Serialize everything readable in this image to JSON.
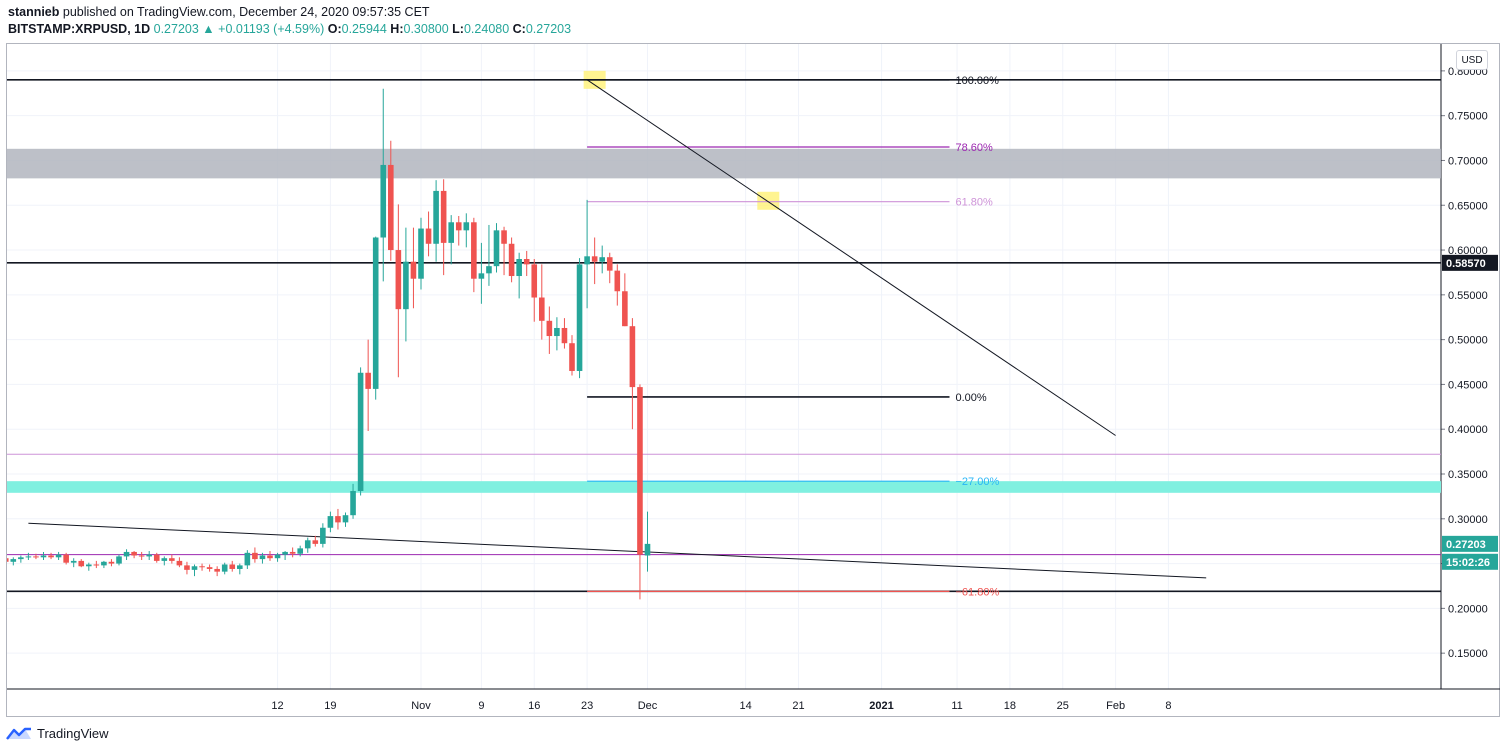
{
  "header": {
    "line1_author": "stannieb",
    "line1_rest": " published on TradingView.com, December 24, 2020 09:57:35 CET",
    "symbol": "BITSTAMP:XRPUSD, 1D",
    "last": "0.27203",
    "change": "▲ +0.01193 (+4.59%)",
    "o_label": "O:",
    "o": "0.25944",
    "h_label": "H:",
    "h": "0.30800",
    "l_label": "L:",
    "l": "0.24080",
    "c_label": "C:",
    "c": "0.27203"
  },
  "footer": {
    "brand": "TradingView",
    "logo_icon": "tradingview-logo-icon"
  },
  "currency_button": "USD",
  "colors": {
    "up": "#26a69a",
    "down": "#ef5350",
    "grid": "#f0f3fa",
    "fib_purple": "#9c27b0",
    "fib_light_purple": "#ce93d8",
    "fib_blue": "#29b6f6",
    "fib_red": "#ef5350",
    "zone_gray": "#b2b5be",
    "zone_cyan": "#80f0e0",
    "highlight": "#fff176"
  },
  "chart_data": {
    "type": "candlestick",
    "symbol": "BITSTAMP:XRPUSD",
    "interval": "1D",
    "ylim": [
      0.11,
      0.83
    ],
    "y_ticks": [
      "0.80000",
      "0.75000",
      "0.70000",
      "0.65000",
      "0.60000",
      "0.55000",
      "0.50000",
      "0.45000",
      "0.40000",
      "0.35000",
      "0.30000",
      "0.25000",
      "0.20000",
      "0.15000"
    ],
    "x_ticks": [
      {
        "label": "12",
        "day": -49
      },
      {
        "label": "19",
        "day": -42
      },
      {
        "label": "Nov",
        "day": -30
      },
      {
        "label": "9",
        "day": -22
      },
      {
        "label": "16",
        "day": -15
      },
      {
        "label": "23",
        "day": -8
      },
      {
        "label": "Dec",
        "day": 0
      },
      {
        "label": "14",
        "day": 13
      },
      {
        "label": "21",
        "day": 20
      },
      {
        "label": "2021",
        "day": 31
      },
      {
        "label": "11",
        "day": 41
      },
      {
        "label": "18",
        "day": 48
      },
      {
        "label": "25",
        "day": 55
      },
      {
        "label": "Feb",
        "day": 62
      },
      {
        "label": "8",
        "day": 69
      }
    ],
    "candles": [
      [
        0.244,
        0.258,
        0.241,
        0.255
      ],
      [
        0.255,
        0.261,
        0.249,
        0.253
      ],
      [
        0.253,
        0.259,
        0.249,
        0.256
      ],
      [
        0.256,
        0.262,
        0.251,
        0.252
      ],
      [
        0.252,
        0.257,
        0.248,
        0.255
      ],
      [
        0.255,
        0.259,
        0.251,
        0.257
      ],
      [
        0.257,
        0.262,
        0.254,
        0.258
      ],
      [
        0.258,
        0.261,
        0.255,
        0.257
      ],
      [
        0.257,
        0.263,
        0.254,
        0.259
      ],
      [
        0.259,
        0.262,
        0.255,
        0.257
      ],
      [
        0.257,
        0.263,
        0.254,
        0.26
      ],
      [
        0.26,
        0.262,
        0.249,
        0.251
      ],
      [
        0.251,
        0.256,
        0.246,
        0.253
      ],
      [
        0.253,
        0.255,
        0.246,
        0.247
      ],
      [
        0.247,
        0.251,
        0.242,
        0.249
      ],
      [
        0.249,
        0.253,
        0.245,
        0.248
      ],
      [
        0.248,
        0.253,
        0.245,
        0.252
      ],
      [
        0.252,
        0.255,
        0.247,
        0.25
      ],
      [
        0.25,
        0.26,
        0.248,
        0.258
      ],
      [
        0.258,
        0.266,
        0.254,
        0.263
      ],
      [
        0.263,
        0.264,
        0.256,
        0.259
      ],
      [
        0.259,
        0.263,
        0.254,
        0.258
      ],
      [
        0.258,
        0.264,
        0.254,
        0.26
      ],
      [
        0.26,
        0.262,
        0.251,
        0.253
      ],
      [
        0.253,
        0.258,
        0.248,
        0.256
      ],
      [
        0.256,
        0.26,
        0.25,
        0.253
      ],
      [
        0.253,
        0.257,
        0.246,
        0.248
      ],
      [
        0.248,
        0.252,
        0.238,
        0.243
      ],
      [
        0.243,
        0.249,
        0.236,
        0.247
      ],
      [
        0.247,
        0.25,
        0.242,
        0.246
      ],
      [
        0.246,
        0.249,
        0.241,
        0.244
      ],
      [
        0.244,
        0.247,
        0.236,
        0.241
      ],
      [
        0.241,
        0.251,
        0.238,
        0.249
      ],
      [
        0.249,
        0.253,
        0.241,
        0.244
      ],
      [
        0.244,
        0.25,
        0.238,
        0.248
      ],
      [
        0.248,
        0.265,
        0.244,
        0.262
      ],
      [
        0.262,
        0.268,
        0.251,
        0.255
      ],
      [
        0.255,
        0.262,
        0.25,
        0.259
      ],
      [
        0.259,
        0.264,
        0.253,
        0.256
      ],
      [
        0.256,
        0.262,
        0.252,
        0.26
      ],
      [
        0.26,
        0.264,
        0.254,
        0.263
      ],
      [
        0.263,
        0.268,
        0.257,
        0.261
      ],
      [
        0.261,
        0.27,
        0.258,
        0.267
      ],
      [
        0.267,
        0.279,
        0.262,
        0.276
      ],
      [
        0.276,
        0.281,
        0.269,
        0.272
      ],
      [
        0.272,
        0.295,
        0.268,
        0.29
      ],
      [
        0.29,
        0.308,
        0.285,
        0.303
      ],
      [
        0.303,
        0.311,
        0.288,
        0.296
      ],
      [
        0.296,
        0.307,
        0.291,
        0.304
      ],
      [
        0.304,
        0.339,
        0.3,
        0.331
      ],
      [
        0.331,
        0.469,
        0.326,
        0.463
      ],
      [
        0.463,
        0.5,
        0.398,
        0.445
      ],
      [
        0.445,
        0.615,
        0.433,
        0.614
      ],
      [
        0.614,
        0.78,
        0.565,
        0.695
      ],
      [
        0.695,
        0.722,
        0.588,
        0.6
      ],
      [
        0.6,
        0.651,
        0.458,
        0.534
      ],
      [
        0.534,
        0.625,
        0.498,
        0.587
      ],
      [
        0.587,
        0.625,
        0.535,
        0.568
      ],
      [
        0.568,
        0.636,
        0.556,
        0.624
      ],
      [
        0.624,
        0.643,
        0.593,
        0.607
      ],
      [
        0.607,
        0.678,
        0.587,
        0.666
      ],
      [
        0.666,
        0.679,
        0.572,
        0.608
      ],
      [
        0.608,
        0.639,
        0.584,
        0.631
      ],
      [
        0.631,
        0.638,
        0.605,
        0.622
      ],
      [
        0.622,
        0.641,
        0.603,
        0.631
      ],
      [
        0.631,
        0.636,
        0.553,
        0.568
      ],
      [
        0.568,
        0.608,
        0.54,
        0.574
      ],
      [
        0.574,
        0.628,
        0.56,
        0.582
      ],
      [
        0.582,
        0.63,
        0.575,
        0.622
      ],
      [
        0.622,
        0.626,
        0.572,
        0.607
      ],
      [
        0.607,
        0.614,
        0.564,
        0.571
      ],
      [
        0.571,
        0.597,
        0.546,
        0.59
      ],
      [
        0.59,
        0.599,
        0.571,
        0.584
      ],
      [
        0.584,
        0.59,
        0.52,
        0.547
      ],
      [
        0.547,
        0.584,
        0.5,
        0.521
      ],
      [
        0.521,
        0.537,
        0.484,
        0.504
      ],
      [
        0.504,
        0.525,
        0.488,
        0.513
      ],
      [
        0.513,
        0.524,
        0.49,
        0.496
      ],
      [
        0.496,
        0.505,
        0.46,
        0.465
      ],
      [
        0.465,
        0.591,
        0.457,
        0.584
      ],
      [
        0.584,
        0.656,
        0.535,
        0.593
      ],
      [
        0.593,
        0.614,
        0.562,
        0.587
      ],
      [
        0.587,
        0.605,
        0.574,
        0.592
      ],
      [
        0.592,
        0.597,
        0.563,
        0.577
      ],
      [
        0.577,
        0.584,
        0.538,
        0.554
      ],
      [
        0.554,
        0.574,
        0.515,
        0.515
      ],
      [
        0.515,
        0.524,
        0.4,
        0.447
      ],
      [
        0.447,
        0.45,
        0.21,
        0.26
      ],
      [
        0.259,
        0.308,
        0.241,
        0.272
      ]
    ],
    "hlines": [
      {
        "value": 0.79,
        "from_day": -82,
        "label": "100.00%",
        "label_color": "#131722",
        "line_color": "#131722"
      },
      {
        "value": 0.5857,
        "from_day": -82,
        "line_color": "#131722"
      },
      {
        "value": 0.219,
        "from_day": -82,
        "line_color": "#131722"
      }
    ],
    "fib_levels": [
      {
        "value": 0.79,
        "label": "100.00%",
        "color": "#131722"
      },
      {
        "value": 0.715,
        "label": "78.60%",
        "color": "#9c27b0"
      },
      {
        "value": 0.654,
        "label": "61.80%",
        "color": "#ce93d8"
      },
      {
        "value": 0.436,
        "label": "0.00%",
        "color": "#131722"
      },
      {
        "value": 0.342,
        "label": "−27.00%",
        "color": "#29b6f6"
      },
      {
        "value": 0.219,
        "label": "−61.80%",
        "color": "#ef5350"
      }
    ],
    "fib_start_day": -8,
    "fib_end_day": 40,
    "zones": [
      {
        "from": 0.68,
        "to": 0.713,
        "color": "#b2b5be"
      },
      {
        "from": 0.329,
        "to": 0.342,
        "color": "#80f0e0"
      }
    ],
    "thin_purple_lines": [
      {
        "value": 0.372,
        "color": "#ce93d8"
      },
      {
        "value": 0.26,
        "color": "#9c27b0"
      }
    ],
    "trendlines": [
      {
        "d1": -8,
        "v1": 0.79,
        "d2": 62,
        "v2": 0.393
      },
      {
        "d1": -82,
        "v1": 0.295,
        "d2": 74,
        "v2": 0.234
      }
    ],
    "highlights": [
      {
        "day": -7,
        "value": 0.79
      },
      {
        "day": 16,
        "value": 0.655
      }
    ],
    "price_labels": [
      {
        "value": 0.5857,
        "text": "0.58570",
        "bg": "#131722"
      },
      {
        "value": 0.27203,
        "text": "0.27203",
        "bg": "#26a69a"
      },
      {
        "value": 0.252,
        "text": "15:02:26",
        "bg": "#26a69a"
      }
    ]
  }
}
